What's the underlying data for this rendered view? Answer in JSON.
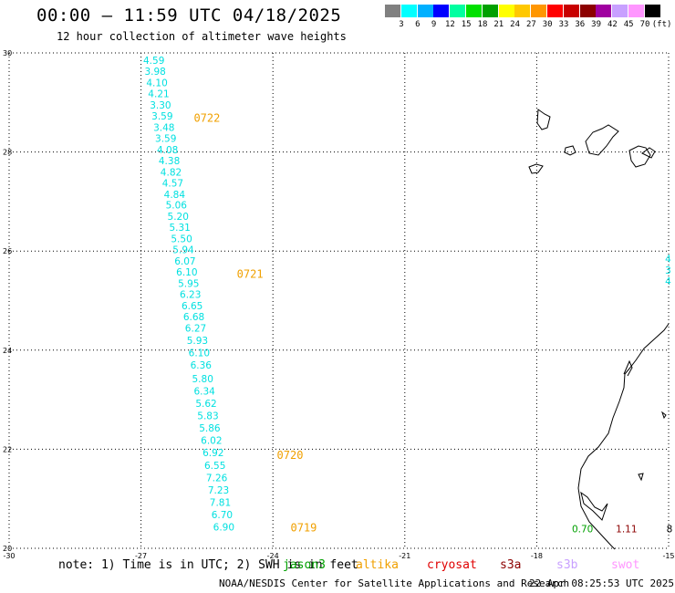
{
  "title": "00:00 – 11:59 UTC 04/18/2025",
  "subtitle": "12 hour collection of altimeter wave heights",
  "colorbar": {
    "colors": [
      "#808080",
      "#00ffff",
      "#00b0ff",
      "#0000ff",
      "#00ffa0",
      "#00e000",
      "#00a000",
      "#ffff00",
      "#ffc800",
      "#ff9600",
      "#ff0000",
      "#c80000",
      "#8c0000",
      "#a000a0",
      "#c8a0ff",
      "#ff96ff",
      "#000000"
    ],
    "labels": [
      "3",
      "6",
      "9",
      "12",
      "15",
      "18",
      "21",
      "24",
      "27",
      "30",
      "33",
      "36",
      "39",
      "42",
      "45",
      "70",
      "(ft)"
    ]
  },
  "axes": {
    "lon_ticks": [
      "-30",
      "-27",
      "-24",
      "-21",
      "-18",
      "-15"
    ],
    "lat_ticks": [
      "30",
      "28",
      "26",
      "24",
      "22",
      "20"
    ]
  },
  "track": {
    "color": "#00e0e0",
    "points": [
      {
        "lat": 29.85,
        "lon": -26.95,
        "v": "4.59"
      },
      {
        "lat": 29.63,
        "lon": -26.92,
        "v": "3.98"
      },
      {
        "lat": 29.4,
        "lon": -26.88,
        "v": "4.10"
      },
      {
        "lat": 29.18,
        "lon": -26.84,
        "v": "4.21"
      },
      {
        "lat": 28.95,
        "lon": -26.8,
        "v": "3.30"
      },
      {
        "lat": 28.73,
        "lon": -26.76,
        "v": "3.59"
      },
      {
        "lat": 28.5,
        "lon": -26.72,
        "v": "3.48"
      },
      {
        "lat": 28.28,
        "lon": -26.68,
        "v": "3.59"
      },
      {
        "lat": 28.05,
        "lon": -26.64,
        "v": "4.08"
      },
      {
        "lat": 27.83,
        "lon": -26.6,
        "v": "4.38"
      },
      {
        "lat": 27.6,
        "lon": -26.56,
        "v": "4.82"
      },
      {
        "lat": 27.38,
        "lon": -26.52,
        "v": "4.57"
      },
      {
        "lat": 27.15,
        "lon": -26.48,
        "v": "4.84"
      },
      {
        "lat": 26.93,
        "lon": -26.44,
        "v": "5.06"
      },
      {
        "lat": 26.7,
        "lon": -26.4,
        "v": "5.20"
      },
      {
        "lat": 26.48,
        "lon": -26.36,
        "v": "5.31"
      },
      {
        "lat": 26.25,
        "lon": -26.32,
        "v": "5.50"
      },
      {
        "lat": 26.03,
        "lon": -26.28,
        "v": "5.94"
      },
      {
        "lat": 25.8,
        "lon": -26.24,
        "v": "6.07"
      },
      {
        "lat": 25.58,
        "lon": -26.2,
        "v": "6.10"
      },
      {
        "lat": 25.35,
        "lon": -26.16,
        "v": "5.95"
      },
      {
        "lat": 25.13,
        "lon": -26.12,
        "v": "6.23"
      },
      {
        "lat": 24.9,
        "lon": -26.08,
        "v": "6.65"
      },
      {
        "lat": 24.68,
        "lon": -26.04,
        "v": "6.68"
      },
      {
        "lat": 24.45,
        "lon": -26.0,
        "v": "6.27"
      },
      {
        "lat": 24.2,
        "lon": -25.96,
        "v": "5.93"
      },
      {
        "lat": 23.95,
        "lon": -25.92,
        "v": "6.10"
      },
      {
        "lat": 23.7,
        "lon": -25.88,
        "v": "6.36"
      },
      {
        "lat": 23.43,
        "lon": -25.84,
        "v": "5.80"
      },
      {
        "lat": 23.18,
        "lon": -25.8,
        "v": "6.34"
      },
      {
        "lat": 22.93,
        "lon": -25.76,
        "v": "5.62"
      },
      {
        "lat": 22.68,
        "lon": -25.72,
        "v": "5.83"
      },
      {
        "lat": 22.43,
        "lon": -25.68,
        "v": "5.86"
      },
      {
        "lat": 22.18,
        "lon": -25.64,
        "v": "6.02"
      },
      {
        "lat": 21.93,
        "lon": -25.6,
        "v": "6.92"
      },
      {
        "lat": 21.68,
        "lon": -25.56,
        "v": "6.55"
      },
      {
        "lat": 21.43,
        "lon": -25.52,
        "v": "7.26"
      },
      {
        "lat": 21.18,
        "lon": -25.48,
        "v": "7.23"
      },
      {
        "lat": 20.93,
        "lon": -25.44,
        "v": "7.81"
      },
      {
        "lat": 20.68,
        "lon": -25.4,
        "v": "6.70"
      },
      {
        "lat": 20.43,
        "lon": -25.36,
        "v": "6.90"
      }
    ]
  },
  "time_labels": [
    {
      "lat": 28.7,
      "lon": -25.8,
      "text": "0722"
    },
    {
      "lat": 25.55,
      "lon": -24.82,
      "text": "0721"
    },
    {
      "lat": 21.9,
      "lon": -23.91,
      "text": "0720"
    },
    {
      "lat": 20.43,
      "lon": -23.6,
      "text": "0719"
    }
  ],
  "time_label_color": "#f0a000",
  "edge_labels": [
    {
      "lat": 25.85,
      "lon": -15.08,
      "text": "4",
      "color": "#00e0e0"
    },
    {
      "lat": 25.62,
      "lon": -15.08,
      "text": "3",
      "color": "#00e0e0"
    },
    {
      "lat": 25.4,
      "lon": -15.08,
      "text": "4",
      "color": "#00e0e0"
    },
    {
      "lat": 20.4,
      "lon": -17.2,
      "text": "0.70",
      "color": "#00a000"
    },
    {
      "lat": 20.4,
      "lon": -16.2,
      "text": "1.11",
      "color": "#8c0000"
    },
    {
      "lat": 20.4,
      "lon": -15.05,
      "text": "8",
      "color": "#000000"
    }
  ],
  "note": "note: 1) Time is in UTC; 2) SWH is in feet",
  "satellites": [
    {
      "name": "jason3",
      "color": "#00a000"
    },
    {
      "name": "altika",
      "color": "#f0a000"
    },
    {
      "name": "cryosat",
      "color": "#e00000"
    },
    {
      "name": "s3a",
      "color": "#8c0000"
    },
    {
      "name": "s3b",
      "color": "#c8a0ff"
    },
    {
      "name": "swot",
      "color": "#ff96ff"
    }
  ],
  "credit": "NOAA/NESDIS Center for Satellite Applications and Research",
  "credit_time": "22 Apr 08:25:53 UTC 2025"
}
